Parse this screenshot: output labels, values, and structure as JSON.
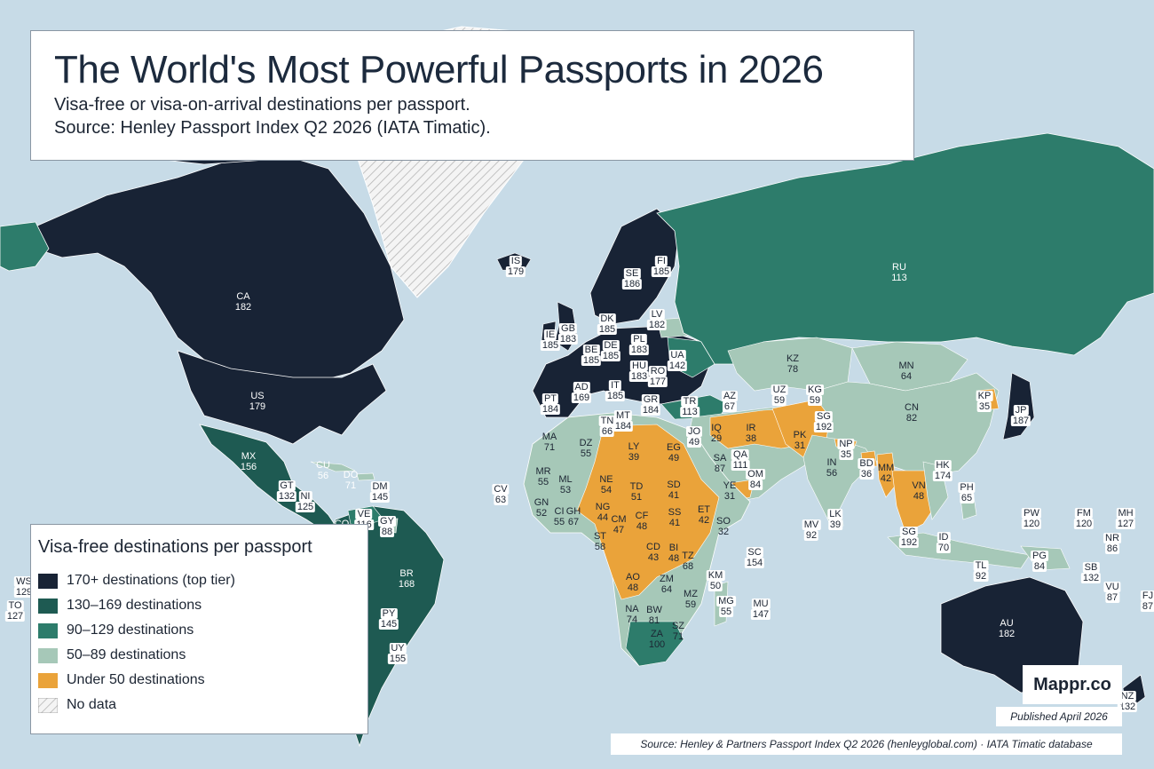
{
  "title": "The World's Most Powerful Passports in 2026",
  "subtitle_1": "Visa-free or visa-on-arrival destinations per passport.",
  "subtitle_2": "Source: Henley Passport Index Q2 2026 (IATA Timatic).",
  "legend": {
    "title": "Visa-free destinations per passport",
    "items": [
      {
        "label": "170+ destinations (top tier)",
        "color": "#182335"
      },
      {
        "label": "130–169 destinations",
        "color": "#1e5a52"
      },
      {
        "label": "90–129 destinations",
        "color": "#2d7c6b"
      },
      {
        "label": "50–89 destinations",
        "color": "#a6c8b8"
      },
      {
        "label": "Under 50 destinations",
        "color": "#eaa33a"
      },
      {
        "label": "No data",
        "color": "hatched"
      }
    ]
  },
  "brand": "Mappr.co",
  "published": "Published April 2026",
  "source_note": "Source: Henley & Partners Passport Index Q2 2026 (henleyglobal.com) · IATA Timatic database",
  "colors": {
    "ocean": "#c7dbe7",
    "tier1": "#182335",
    "tier2": "#1e5a52",
    "tier3": "#2d7c6b",
    "tier4": "#a6c8b8",
    "tier5": "#eaa33a",
    "nodata": "#f2f2f2"
  },
  "countries": [
    {
      "code": "CA",
      "value": "182"
    },
    {
      "code": "US",
      "value": "179"
    },
    {
      "code": "MX",
      "value": "156"
    },
    {
      "code": "CU",
      "value": "56"
    },
    {
      "code": "DO",
      "value": "71"
    },
    {
      "code": "DM",
      "value": "145"
    },
    {
      "code": "GT",
      "value": "132"
    },
    {
      "code": "NI",
      "value": "125"
    },
    {
      "code": "VE",
      "value": "116"
    },
    {
      "code": "GY",
      "value": "88"
    },
    {
      "code": "CO",
      "value": ""
    },
    {
      "code": "BR",
      "value": "168"
    },
    {
      "code": "PY",
      "value": "145"
    },
    {
      "code": "UY",
      "value": "155"
    },
    {
      "code": "IS",
      "value": "179"
    },
    {
      "code": "SE",
      "value": "186"
    },
    {
      "code": "FI",
      "value": "185"
    },
    {
      "code": "DK",
      "value": "185"
    },
    {
      "code": "LV",
      "value": "182"
    },
    {
      "code": "GB",
      "value": "183"
    },
    {
      "code": "IE",
      "value": "185"
    },
    {
      "code": "BE",
      "value": "185"
    },
    {
      "code": "DE",
      "value": "185"
    },
    {
      "code": "PL",
      "value": "183"
    },
    {
      "code": "UA",
      "value": "142"
    },
    {
      "code": "HU",
      "value": "183"
    },
    {
      "code": "RO",
      "value": "177"
    },
    {
      "code": "IT",
      "value": "185"
    },
    {
      "code": "AD",
      "value": "169"
    },
    {
      "code": "PT",
      "value": "184"
    },
    {
      "code": "GR",
      "value": "184"
    },
    {
      "code": "TR",
      "value": "113"
    },
    {
      "code": "RU",
      "value": "113"
    },
    {
      "code": "KZ",
      "value": "78"
    },
    {
      "code": "MN",
      "value": "64"
    },
    {
      "code": "CN",
      "value": "82"
    },
    {
      "code": "KP",
      "value": "35"
    },
    {
      "code": "JP",
      "value": "187"
    },
    {
      "code": "UZ",
      "value": "59"
    },
    {
      "code": "KG",
      "value": "59"
    },
    {
      "code": "AZ",
      "value": "67"
    },
    {
      "code": "SG",
      "value": "192"
    },
    {
      "code": "MA",
      "value": "71"
    },
    {
      "code": "TN",
      "value": "66"
    },
    {
      "code": "MT",
      "value": "184"
    },
    {
      "code": "DZ",
      "value": "55"
    },
    {
      "code": "LY",
      "value": "39"
    },
    {
      "code": "EG",
      "value": "49"
    },
    {
      "code": "JO",
      "value": "49"
    },
    {
      "code": "IQ",
      "value": "29"
    },
    {
      "code": "IR",
      "value": "38"
    },
    {
      "code": "PK",
      "value": "31"
    },
    {
      "code": "NP",
      "value": "35"
    },
    {
      "code": "SA",
      "value": "87"
    },
    {
      "code": "QA",
      "value": "111"
    },
    {
      "code": "OM",
      "value": "84"
    },
    {
      "code": "IN",
      "value": "56"
    },
    {
      "code": "BD",
      "value": "36"
    },
    {
      "code": "MM",
      "value": "42"
    },
    {
      "code": "HK",
      "value": "174"
    },
    {
      "code": "VN",
      "value": "48"
    },
    {
      "code": "PH",
      "value": "65"
    },
    {
      "code": "MR",
      "value": "55"
    },
    {
      "code": "ML",
      "value": "53"
    },
    {
      "code": "NE",
      "value": "54"
    },
    {
      "code": "TD",
      "value": "51"
    },
    {
      "code": "SD",
      "value": "41"
    },
    {
      "code": "YE",
      "value": "31"
    },
    {
      "code": "CV",
      "value": "63"
    },
    {
      "code": "GN",
      "value": "52"
    },
    {
      "code": "CI",
      "value": "55"
    },
    {
      "code": "GH",
      "value": "67"
    },
    {
      "code": "NG",
      "value": "44"
    },
    {
      "code": "CM",
      "value": "47"
    },
    {
      "code": "CF",
      "value": "48"
    },
    {
      "code": "SS",
      "value": "41"
    },
    {
      "code": "ET",
      "value": "42"
    },
    {
      "code": "SO",
      "value": "32"
    },
    {
      "code": "ST",
      "value": "58"
    },
    {
      "code": "CD",
      "value": "43"
    },
    {
      "code": "BI",
      "value": "48"
    },
    {
      "code": "TZ",
      "value": "68"
    },
    {
      "code": "KM",
      "value": "50"
    },
    {
      "code": "SC",
      "value": "154"
    },
    {
      "code": "AO",
      "value": "48"
    },
    {
      "code": "ZM",
      "value": "64"
    },
    {
      "code": "MZ",
      "value": "59"
    },
    {
      "code": "MG",
      "value": "55"
    },
    {
      "code": "MU",
      "value": "147"
    },
    {
      "code": "NA",
      "value": "74"
    },
    {
      "code": "BW",
      "value": "81"
    },
    {
      "code": "ZA",
      "value": "100"
    },
    {
      "code": "SZ",
      "value": "71"
    },
    {
      "code": "MV",
      "value": "92"
    },
    {
      "code": "LK",
      "value": "39"
    },
    {
      "code": "SG",
      "value": "192"
    },
    {
      "code": "ID",
      "value": "70"
    },
    {
      "code": "TL",
      "value": "92"
    },
    {
      "code": "PW",
      "value": "120"
    },
    {
      "code": "FM",
      "value": "120"
    },
    {
      "code": "MH",
      "value": "127"
    },
    {
      "code": "NR",
      "value": "86"
    },
    {
      "code": "PG",
      "value": "84"
    },
    {
      "code": "SB",
      "value": "132"
    },
    {
      "code": "VU",
      "value": "87"
    },
    {
      "code": "FJ",
      "value": "87"
    },
    {
      "code": "AU",
      "value": "182"
    },
    {
      "code": "NZ",
      "value": "132"
    },
    {
      "code": "WS",
      "value": "129"
    },
    {
      "code": "TO",
      "value": "127"
    }
  ]
}
